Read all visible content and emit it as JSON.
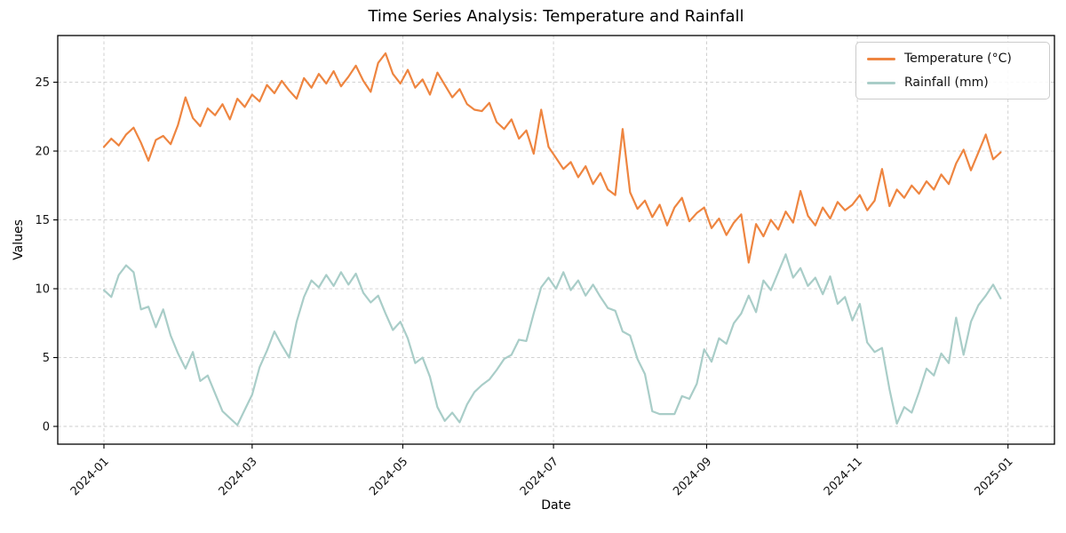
{
  "chart_data": {
    "type": "line",
    "title": "Time Series Analysis: Temperature and Rainfall",
    "xlabel": "Date",
    "ylabel": "Values",
    "grid": true,
    "grid_style": "dashed",
    "grid_color": "#cccccc",
    "background_color": "#ffffff",
    "legend_position": "upper right",
    "x_start_date": "2024-01-01",
    "day_step": 3,
    "x_tick_labels": [
      "2024-01",
      "2024-03",
      "2024-05",
      "2024-07",
      "2024-09",
      "2024-11",
      "2025-01"
    ],
    "x_tick_days": [
      0,
      60,
      121,
      182,
      244,
      305,
      366
    ],
    "y_ticks": [
      0,
      5,
      10,
      15,
      20,
      25
    ],
    "axes": {
      "x_domain_days": [
        -18.7,
        384.8
      ],
      "y_domain": [
        -1.29,
        28.39
      ]
    },
    "series": [
      {
        "name": "Temperature (°C)",
        "color": "#ee8540",
        "values": [
          20.3,
          20.9,
          20.4,
          21.2,
          21.7,
          20.6,
          19.3,
          20.8,
          21.1,
          20.5,
          21.9,
          23.9,
          22.4,
          21.8,
          23.1,
          22.6,
          23.4,
          22.3,
          23.8,
          23.2,
          24.1,
          23.6,
          24.8,
          24.2,
          25.1,
          24.4,
          23.8,
          25.3,
          24.6,
          25.6,
          24.9,
          25.8,
          24.7,
          25.4,
          26.2,
          25.1,
          24.3,
          26.4,
          27.1,
          25.6,
          24.9,
          25.9,
          24.6,
          25.2,
          24.1,
          25.7,
          24.8,
          23.9,
          24.5,
          23.4,
          23.0,
          22.9,
          23.5,
          22.1,
          21.6,
          22.3,
          20.9,
          21.5,
          19.8,
          23.0,
          20.3,
          19.5,
          18.7,
          19.2,
          18.1,
          18.9,
          17.6,
          18.4,
          17.2,
          16.8,
          21.6,
          17.0,
          15.8,
          16.4,
          15.2,
          16.1,
          14.6,
          15.9,
          16.6,
          14.9,
          15.5,
          15.9,
          14.4,
          15.1,
          13.9,
          14.8,
          15.4,
          11.9,
          14.7,
          13.8,
          15.0,
          14.3,
          15.6,
          14.8,
          17.1,
          15.3,
          14.6,
          15.9,
          15.1,
          16.3,
          15.7,
          16.1,
          16.8,
          15.7,
          16.4,
          18.7,
          16.0,
          17.2,
          16.6,
          17.5,
          16.9,
          17.8,
          17.2,
          18.3,
          17.6,
          19.1,
          20.1,
          18.6,
          19.9,
          21.2,
          19.4,
          19.9
        ]
      },
      {
        "name": "Rainfall (mm)",
        "color": "#a9cdc8",
        "values": [
          9.9,
          9.4,
          11.0,
          11.7,
          11.2,
          8.5,
          8.7,
          7.2,
          8.5,
          6.6,
          5.3,
          4.2,
          5.4,
          3.3,
          3.7,
          2.4,
          1.1,
          0.6,
          0.1,
          1.2,
          2.3,
          4.3,
          5.5,
          6.9,
          5.9,
          5.0,
          7.6,
          9.4,
          10.6,
          10.1,
          11.0,
          10.2,
          11.2,
          10.3,
          11.1,
          9.7,
          9.0,
          9.5,
          8.2,
          7.0,
          7.6,
          6.4,
          4.6,
          5.0,
          3.6,
          1.4,
          0.4,
          1.0,
          0.3,
          1.6,
          2.5,
          3.0,
          3.4,
          4.1,
          4.9,
          5.2,
          6.3,
          6.2,
          8.2,
          10.1,
          10.8,
          10.0,
          11.2,
          9.9,
          10.6,
          9.5,
          10.3,
          9.4,
          8.6,
          8.4,
          6.9,
          6.6,
          4.9,
          3.8,
          1.1,
          0.9,
          0.9,
          0.9,
          2.2,
          2.0,
          3.1,
          5.6,
          4.7,
          6.4,
          6.0,
          7.5,
          8.2,
          9.5,
          8.3,
          10.6,
          9.9,
          11.2,
          12.5,
          10.8,
          11.5,
          10.2,
          10.8,
          9.6,
          10.9,
          8.9,
          9.4,
          7.7,
          8.9,
          6.1,
          5.4,
          5.7,
          2.7,
          0.2,
          1.4,
          1.0,
          2.5,
          4.2,
          3.7,
          5.3,
          4.6,
          7.9,
          5.2,
          7.6,
          8.8,
          9.5,
          10.3,
          9.3
        ]
      }
    ]
  }
}
